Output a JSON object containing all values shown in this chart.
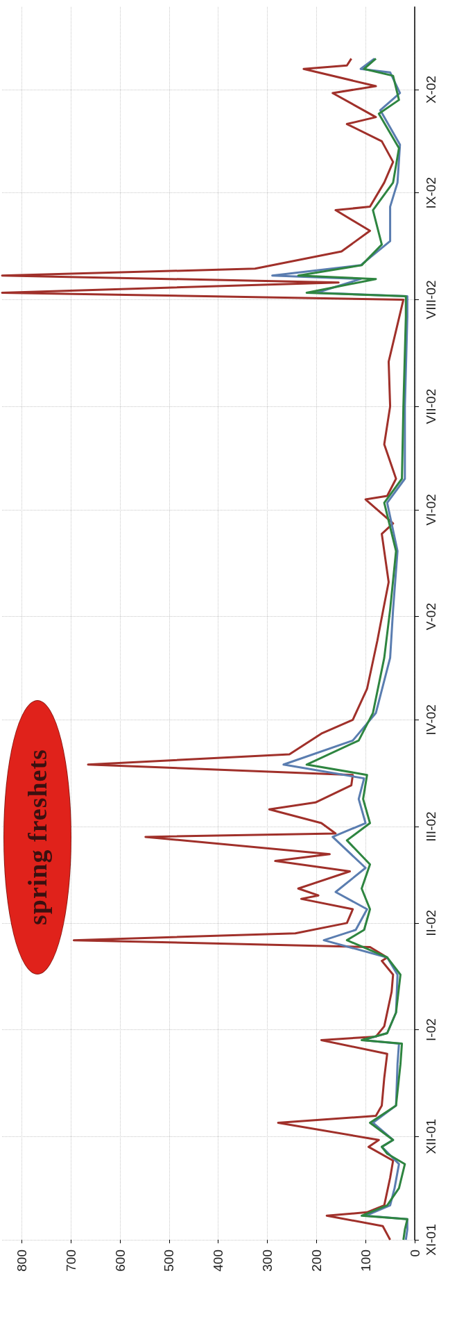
{
  "chart_data": {
    "type": "line",
    "orientation": "horizontal",
    "xlim": [
      840,
      0
    ],
    "xticks": [
      0,
      100,
      200,
      300,
      400,
      500,
      600,
      700,
      800
    ],
    "ylim": [
      "2001-11-01",
      "2002-10-25"
    ],
    "yticks": [
      {
        "value": "2001-11-01",
        "label": "XI-01"
      },
      {
        "value": "2001-12-01",
        "label": "XII-01"
      },
      {
        "value": "2002-01-01",
        "label": "I-02"
      },
      {
        "value": "2002-02-01",
        "label": "II-02"
      },
      {
        "value": "2002-03-01",
        "label": "III-02"
      },
      {
        "value": "2002-04-01",
        "label": "IV-02"
      },
      {
        "value": "2002-05-01",
        "label": "V-02"
      },
      {
        "value": "2002-06-01",
        "label": "VI-02"
      },
      {
        "value": "2002-07-01",
        "label": "VII-02"
      },
      {
        "value": "2002-08-01",
        "label": "VIII-02"
      },
      {
        "value": "2002-09-01",
        "label": "IX-02"
      },
      {
        "value": "2002-10-01",
        "label": "X-02"
      }
    ],
    "grid": true,
    "marker": "none",
    "annotations": [
      "spring freshets"
    ],
    "series": [
      {
        "color": "#a0302a",
        "x": [
          "2001-11-01",
          "2001-11-05",
          "2001-11-08",
          "2001-11-09",
          "2001-11-11",
          "2001-11-19",
          "2001-11-24",
          "2001-11-28",
          "2001-11-30",
          "2001-12-05",
          "2001-12-07",
          "2001-12-10",
          "2001-12-18",
          "2001-12-25",
          "2001-12-29",
          "2001-12-30",
          "2002-01-02",
          "2002-01-12",
          "2002-01-17",
          "2002-01-21",
          "2002-01-22",
          "2002-01-25",
          "2002-01-27",
          "2002-01-29",
          "2002-02-01",
          "2002-02-05",
          "2002-02-08",
          "2002-02-09",
          "2002-02-11",
          "2002-02-16",
          "2002-02-19",
          "2002-02-21",
          "2002-02-26",
          "2002-02-27",
          "2002-03-02",
          "2002-03-06",
          "2002-03-08",
          "2002-03-13",
          "2002-03-16",
          "2002-03-19",
          "2002-03-22",
          "2002-03-28",
          "2002-04-01",
          "2002-04-10",
          "2002-04-18",
          "2002-04-24",
          "2002-05-03",
          "2002-05-11",
          "2002-05-25",
          "2002-05-28",
          "2002-06-04",
          "2002-06-05",
          "2002-06-10",
          "2002-06-20",
          "2002-07-01",
          "2002-07-14",
          "2002-08-01",
          "2002-08-03",
          "2002-08-06",
          "2002-08-08",
          "2002-08-10",
          "2002-08-15",
          "2002-08-21",
          "2002-08-27",
          "2002-08-28",
          "2002-09-04",
          "2002-09-10",
          "2002-09-16",
          "2002-09-21",
          "2002-09-23",
          "2002-09-30",
          "2002-10-02",
          "2002-10-07",
          "2002-10-08",
          "2002-10-10"
        ],
        "values": [
          50,
          65,
          179,
          97,
          62,
          50,
          44,
          94,
          73,
          278,
          79,
          67,
          62,
          56,
          190,
          79,
          62,
          47,
          44,
          67,
          56,
          91,
          694,
          243,
          138,
          126,
          231,
          196,
          237,
          132,
          284,
          173,
          548,
          161,
          190,
          296,
          202,
          129,
          126,
          665,
          255,
          190,
          126,
          97,
          85,
          76,
          64,
          53,
          67,
          44,
          100,
          56,
          38,
          62,
          50,
          53,
          23,
          840,
          155,
          840,
          325,
          149,
          91,
          161,
          91,
          62,
          44,
          67,
          138,
          79,
          167,
          79,
          226,
          138,
          129
        ]
      },
      {
        "color": "#5a7db0",
        "x": [
          "2001-11-01",
          "2001-11-04",
          "2001-11-07",
          "2001-11-08",
          "2001-11-11",
          "2001-11-16",
          "2001-11-23",
          "2001-11-28",
          "2001-11-30",
          "2001-12-05",
          "2001-12-10",
          "2001-12-22",
          "2001-12-28",
          "2001-12-29",
          "2001-12-31",
          "2002-01-06",
          "2002-01-17",
          "2002-01-22",
          "2002-01-27",
          "2002-01-30",
          "2002-02-05",
          "2002-02-10",
          "2002-02-17",
          "2002-02-26",
          "2002-03-02",
          "2002-03-09",
          "2002-03-15",
          "2002-03-19",
          "2002-03-26",
          "2002-04-03",
          "2002-04-19",
          "2002-05-03",
          "2002-05-20",
          "2002-06-03",
          "2002-06-10",
          "2002-07-01",
          "2002-07-27",
          "2002-08-02",
          "2002-08-03",
          "2002-08-07",
          "2002-08-08",
          "2002-08-11",
          "2002-08-18",
          "2002-08-28",
          "2002-09-04",
          "2002-09-15",
          "2002-09-25",
          "2002-09-30",
          "2002-10-06",
          "2002-10-07",
          "2002-10-10"
        ],
        "values": [
          18,
          15,
          15,
          100,
          50,
          41,
          32,
          67,
          44,
          85,
          38,
          35,
          32,
          105,
          56,
          38,
          35,
          56,
          185,
          120,
          97,
          161,
          100,
          167,
          100,
          114,
          103,
          267,
          126,
          79,
          50,
          44,
          35,
          56,
          20,
          20,
          15,
          15,
          200,
          110,
          290,
          110,
          50,
          50,
          35,
          30,
          70,
          30,
          50,
          110,
          82
        ]
      },
      {
        "color": "#2e8540",
        "x": [
          "2001-11-01",
          "2001-11-04",
          "2001-11-07",
          "2001-11-08",
          "2001-11-11",
          "2001-11-16",
          "2001-11-23",
          "2001-11-26",
          "2001-11-28",
          "2001-11-30",
          "2001-12-05",
          "2001-12-10",
          "2001-12-22",
          "2001-12-28",
          "2001-12-29",
          "2001-12-31",
          "2002-01-06",
          "2002-01-17",
          "2002-01-22",
          "2002-01-27",
          "2002-01-30",
          "2002-02-05",
          "2002-02-11",
          "2002-02-18",
          "2002-02-25",
          "2002-03-02",
          "2002-03-09",
          "2002-03-16",
          "2002-03-19",
          "2002-03-26",
          "2002-04-03",
          "2002-04-19",
          "2002-05-03",
          "2002-05-20",
          "2002-06-03",
          "2002-06-10",
          "2002-07-01",
          "2002-07-27",
          "2002-08-02",
          "2002-08-03",
          "2002-08-07",
          "2002-08-08",
          "2002-08-11",
          "2002-08-17",
          "2002-08-27",
          "2002-09-04",
          "2002-09-14",
          "2002-09-24",
          "2002-09-28",
          "2002-10-05",
          "2002-10-07",
          "2002-10-10"
        ],
        "values": [
          23,
          20,
          15,
          108,
          56,
          32,
          20,
          56,
          67,
          44,
          91,
          38,
          29,
          26,
          108,
          56,
          38,
          29,
          56,
          138,
          103,
          91,
          108,
          91,
          138,
          91,
          105,
          97,
          220,
          114,
          85,
          62,
          50,
          38,
          62,
          26,
          23,
          18,
          18,
          220,
          79,
          237,
          108,
          67,
          85,
          44,
          32,
          73,
          32,
          44,
          103,
          79
        ]
      }
    ]
  }
}
